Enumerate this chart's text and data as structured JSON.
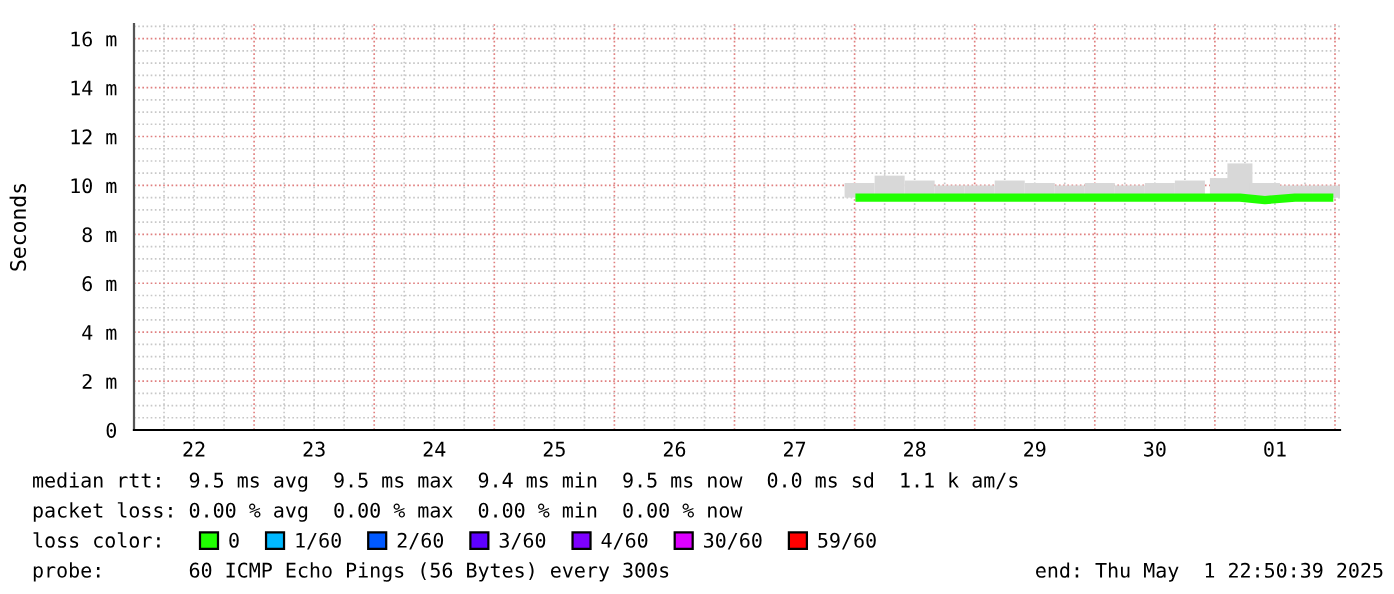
{
  "chart_data": {
    "type": "line",
    "ylabel": "Seconds",
    "x": [
      "2025-04-28T01:00",
      "2025-04-28T07:00",
      "2025-04-28T13:00",
      "2025-04-28T19:00",
      "2025-04-29T01:00",
      "2025-04-29T07:00",
      "2025-04-29T13:00",
      "2025-04-29T19:00",
      "2025-04-30T01:00",
      "2025-04-30T07:00",
      "2025-04-30T13:00",
      "2025-04-30T19:00",
      "2025-05-01T01:00",
      "2025-05-01T05:00",
      "2025-05-01T10:00",
      "2025-05-01T16:00",
      "2025-05-01T22:50"
    ],
    "series": [
      {
        "type": "bar",
        "color": "#d8d8d8",
        "values": [
          0.6,
          0.9,
          0.7,
          0.5,
          0.5,
          0.7,
          0.6,
          0.5,
          0.6,
          0.5,
          0.6,
          0.7,
          0.8,
          1.4,
          0.6,
          0.5,
          0.5
        ],
        "base": [
          9.5,
          9.5,
          9.5,
          9.5,
          9.5,
          9.5,
          9.5,
          9.5,
          9.5,
          9.5,
          9.5,
          9.5,
          9.5,
          9.5,
          9.5,
          9.5,
          9.5
        ]
      },
      {
        "name": "0",
        "color": "#20ff00",
        "values": [
          9.5,
          9.5,
          9.5,
          9.5,
          9.5,
          9.5,
          9.5,
          9.5,
          9.5,
          9.5,
          9.5,
          9.5,
          9.5,
          9.5,
          9.4,
          9.5,
          9.5
        ]
      },
      {
        "name": "1/60",
        "color": "#00b8ff",
        "values": [
          null,
          null,
          null,
          null,
          null,
          null,
          null,
          null,
          null,
          null,
          null,
          null,
          null,
          null,
          null,
          null,
          null
        ]
      },
      {
        "name": "2/60",
        "color": "#0059ff",
        "values": [
          null,
          null,
          null,
          null,
          null,
          null,
          null,
          null,
          null,
          null,
          null,
          null,
          null,
          null,
          null,
          null,
          null
        ]
      },
      {
        "name": "3/60",
        "color": "#5e00ff",
        "values": [
          null,
          null,
          null,
          null,
          null,
          null,
          null,
          null,
          null,
          null,
          null,
          null,
          null,
          null,
          null,
          null,
          null
        ]
      },
      {
        "name": "4/60",
        "color": "#7e00ff",
        "values": [
          null,
          null,
          null,
          null,
          null,
          null,
          null,
          null,
          null,
          null,
          null,
          null,
          null,
          null,
          null,
          null,
          null
        ]
      },
      {
        "name": "30/60",
        "color": "#dd00ff",
        "values": [
          null,
          null,
          null,
          null,
          null,
          null,
          null,
          null,
          null,
          null,
          null,
          null,
          null,
          null,
          null,
          null,
          null
        ]
      },
      {
        "name": "59/60",
        "color": "#ff0000",
        "values": [
          null,
          null,
          null,
          null,
          null,
          null,
          null,
          null,
          null,
          null,
          null,
          null,
          null,
          null,
          null,
          null,
          null
        ]
      }
    ],
    "xlim": [
      "2025-04-22T00:00",
      "2025-05-02T01:00"
    ],
    "xticks": [
      {
        "value": "2025-04-22T12:00",
        "label": "22"
      },
      {
        "value": "2025-04-23T12:00",
        "label": "23"
      },
      {
        "value": "2025-04-24T12:00",
        "label": "24"
      },
      {
        "value": "2025-04-25T12:00",
        "label": "25"
      },
      {
        "value": "2025-04-26T12:00",
        "label": "26"
      },
      {
        "value": "2025-04-27T12:00",
        "label": "27"
      },
      {
        "value": "2025-04-28T12:00",
        "label": "28"
      },
      {
        "value": "2025-04-29T12:00",
        "label": "29"
      },
      {
        "value": "2025-04-30T12:00",
        "label": "30"
      },
      {
        "value": "2025-05-01T12:00",
        "label": "01"
      }
    ],
    "ylim": [
      0,
      16.6
    ],
    "yticks": [
      0,
      {
        "value": 2,
        "label": "2 m"
      },
      {
        "value": 4,
        "label": "4 m"
      },
      {
        "value": 6,
        "label": "6 m"
      },
      {
        "value": 8,
        "label": "8 m"
      },
      {
        "value": 10,
        "label": "10 m"
      },
      {
        "value": 12,
        "label": "12 m"
      },
      {
        "value": 14,
        "label": "14 m"
      },
      {
        "value": 16,
        "label": "16 m"
      }
    ],
    "grid": true,
    "legend": "bottom",
    "marker": "none",
    "line_style": "solid",
    "annotations": [
      "median rtt:  9.5 ms avg  9.5 ms max  9.4 ms min  9.5 ms now  0.0 ms sd  1.1 k am/s",
      "packet loss: 0.00 % avg  0.00 % max  0.00 % min  0.00 % now",
      "loss color:",
      "probe:       60 ICMP Echo Pings (56 Bytes) every 300s",
      "end: Thu May  1 22:50:39 2025"
    ]
  }
}
